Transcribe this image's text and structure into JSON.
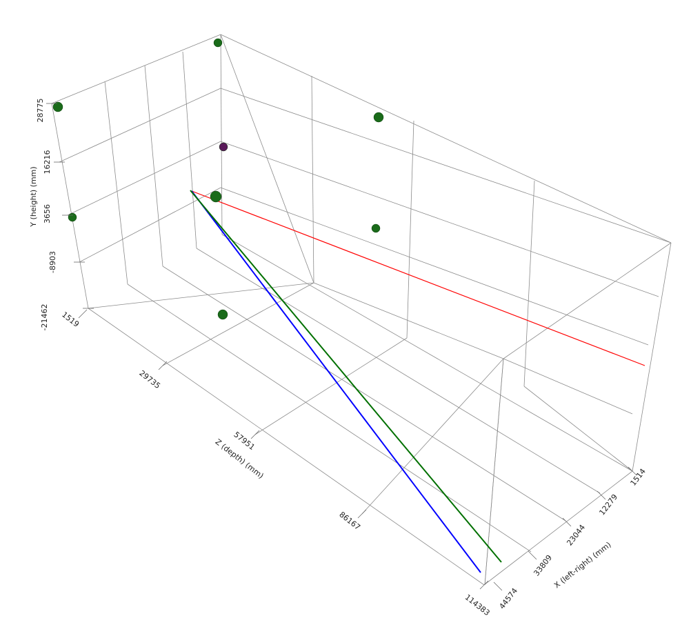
{
  "chart_data": {
    "type": "scatter3d",
    "x_axis": {
      "label": "X (left-right) (mm)",
      "ticks": [
        "44574",
        "33809",
        "23044",
        "12279",
        "1514"
      ]
    },
    "y_axis": {
      "label": "Y (height) (mm)",
      "ticks": [
        "-21462",
        "-8903",
        "3656",
        "16216",
        "28775"
      ]
    },
    "z_axis": {
      "label": "Z (depth) (mm)",
      "ticks": [
        "1519",
        "29735",
        "57951",
        "86167",
        "114383"
      ]
    },
    "points": [
      {
        "color": "#1a6b1a"
      },
      {
        "color": "#1a6b1a"
      },
      {
        "color": "#1a6b1a"
      },
      {
        "color": "#5a1a5a"
      },
      {
        "color": "#1a6b1a"
      },
      {
        "color": "#1a6b1a"
      },
      {
        "color": "#1a6b1a"
      },
      {
        "color": "#1a6b1a"
      }
    ],
    "lines": [
      {
        "color": "#ff0000"
      },
      {
        "color": "#0000ff"
      },
      {
        "color": "#007000"
      }
    ]
  }
}
